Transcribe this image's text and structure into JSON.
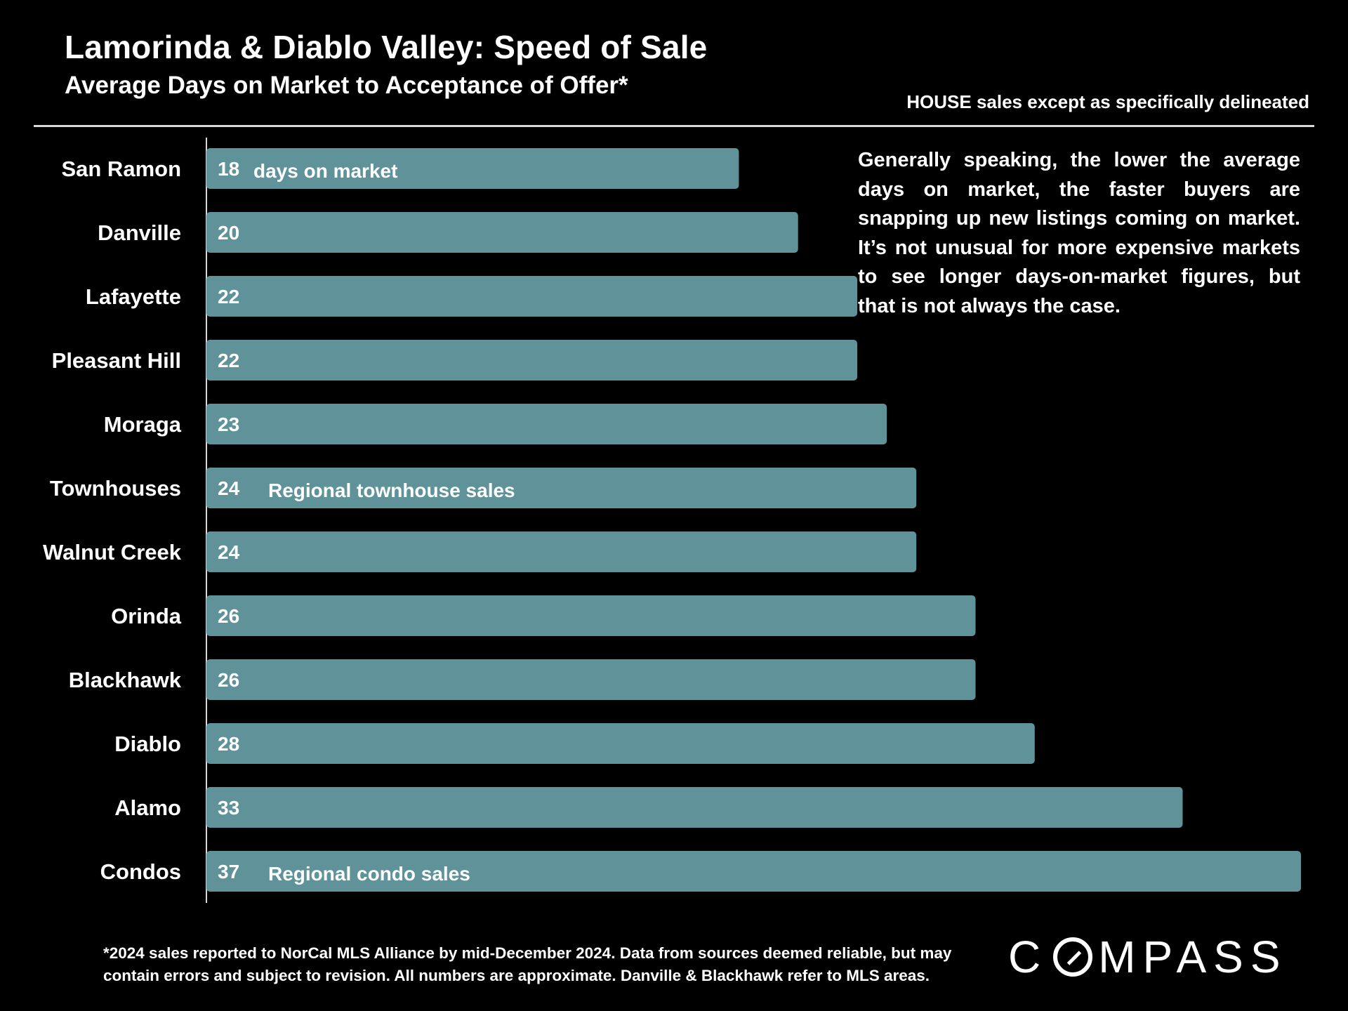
{
  "header": {
    "title": "Lamorinda & Diablo Valley:  Speed of Sale",
    "subtitle": "Average Days on Market to Acceptance of Offer*",
    "scope_note": "HOUSE sales except as specifically delineated"
  },
  "commentary": "Generally speaking, the lower the average days on market, the faster buyers are snapping up new listings coming on market. It’s not unusual for more expensive markets to see longer days-on-market figures, but that is not always the case.",
  "footnote": {
    "line1": "*2024 sales reported to NorCal MLS Alliance by mid-December 2024. Data from sources deemed reliable, but may",
    "line2": "contain errors and subject to revision. All numbers are approximate. Danville & Blackhawk refer to MLS areas."
  },
  "logo": {
    "left": "C",
    "right": "MPASS"
  },
  "colors": {
    "bar": "#5f9399",
    "background": "#000000",
    "text": "#ffffff"
  },
  "chart_data": {
    "type": "bar",
    "orientation": "horizontal",
    "categories": [
      "San Ramon",
      "Danville",
      "Lafayette",
      "Pleasant Hill",
      "Moraga",
      "Townhouses",
      "Walnut Creek",
      "Orinda",
      "Blackhawk",
      "Diablo",
      "Alamo",
      "Condos"
    ],
    "values": [
      18,
      20,
      22,
      22,
      23,
      24,
      24,
      26,
      26,
      28,
      33,
      37
    ],
    "bar_annotations": [
      "days on market",
      "",
      "",
      "",
      "",
      "Regional townhouse sales",
      "",
      "",
      "",
      "",
      "",
      "Regional condo sales"
    ],
    "xlim": [
      0,
      37
    ],
    "grid": false,
    "legend": "none"
  }
}
